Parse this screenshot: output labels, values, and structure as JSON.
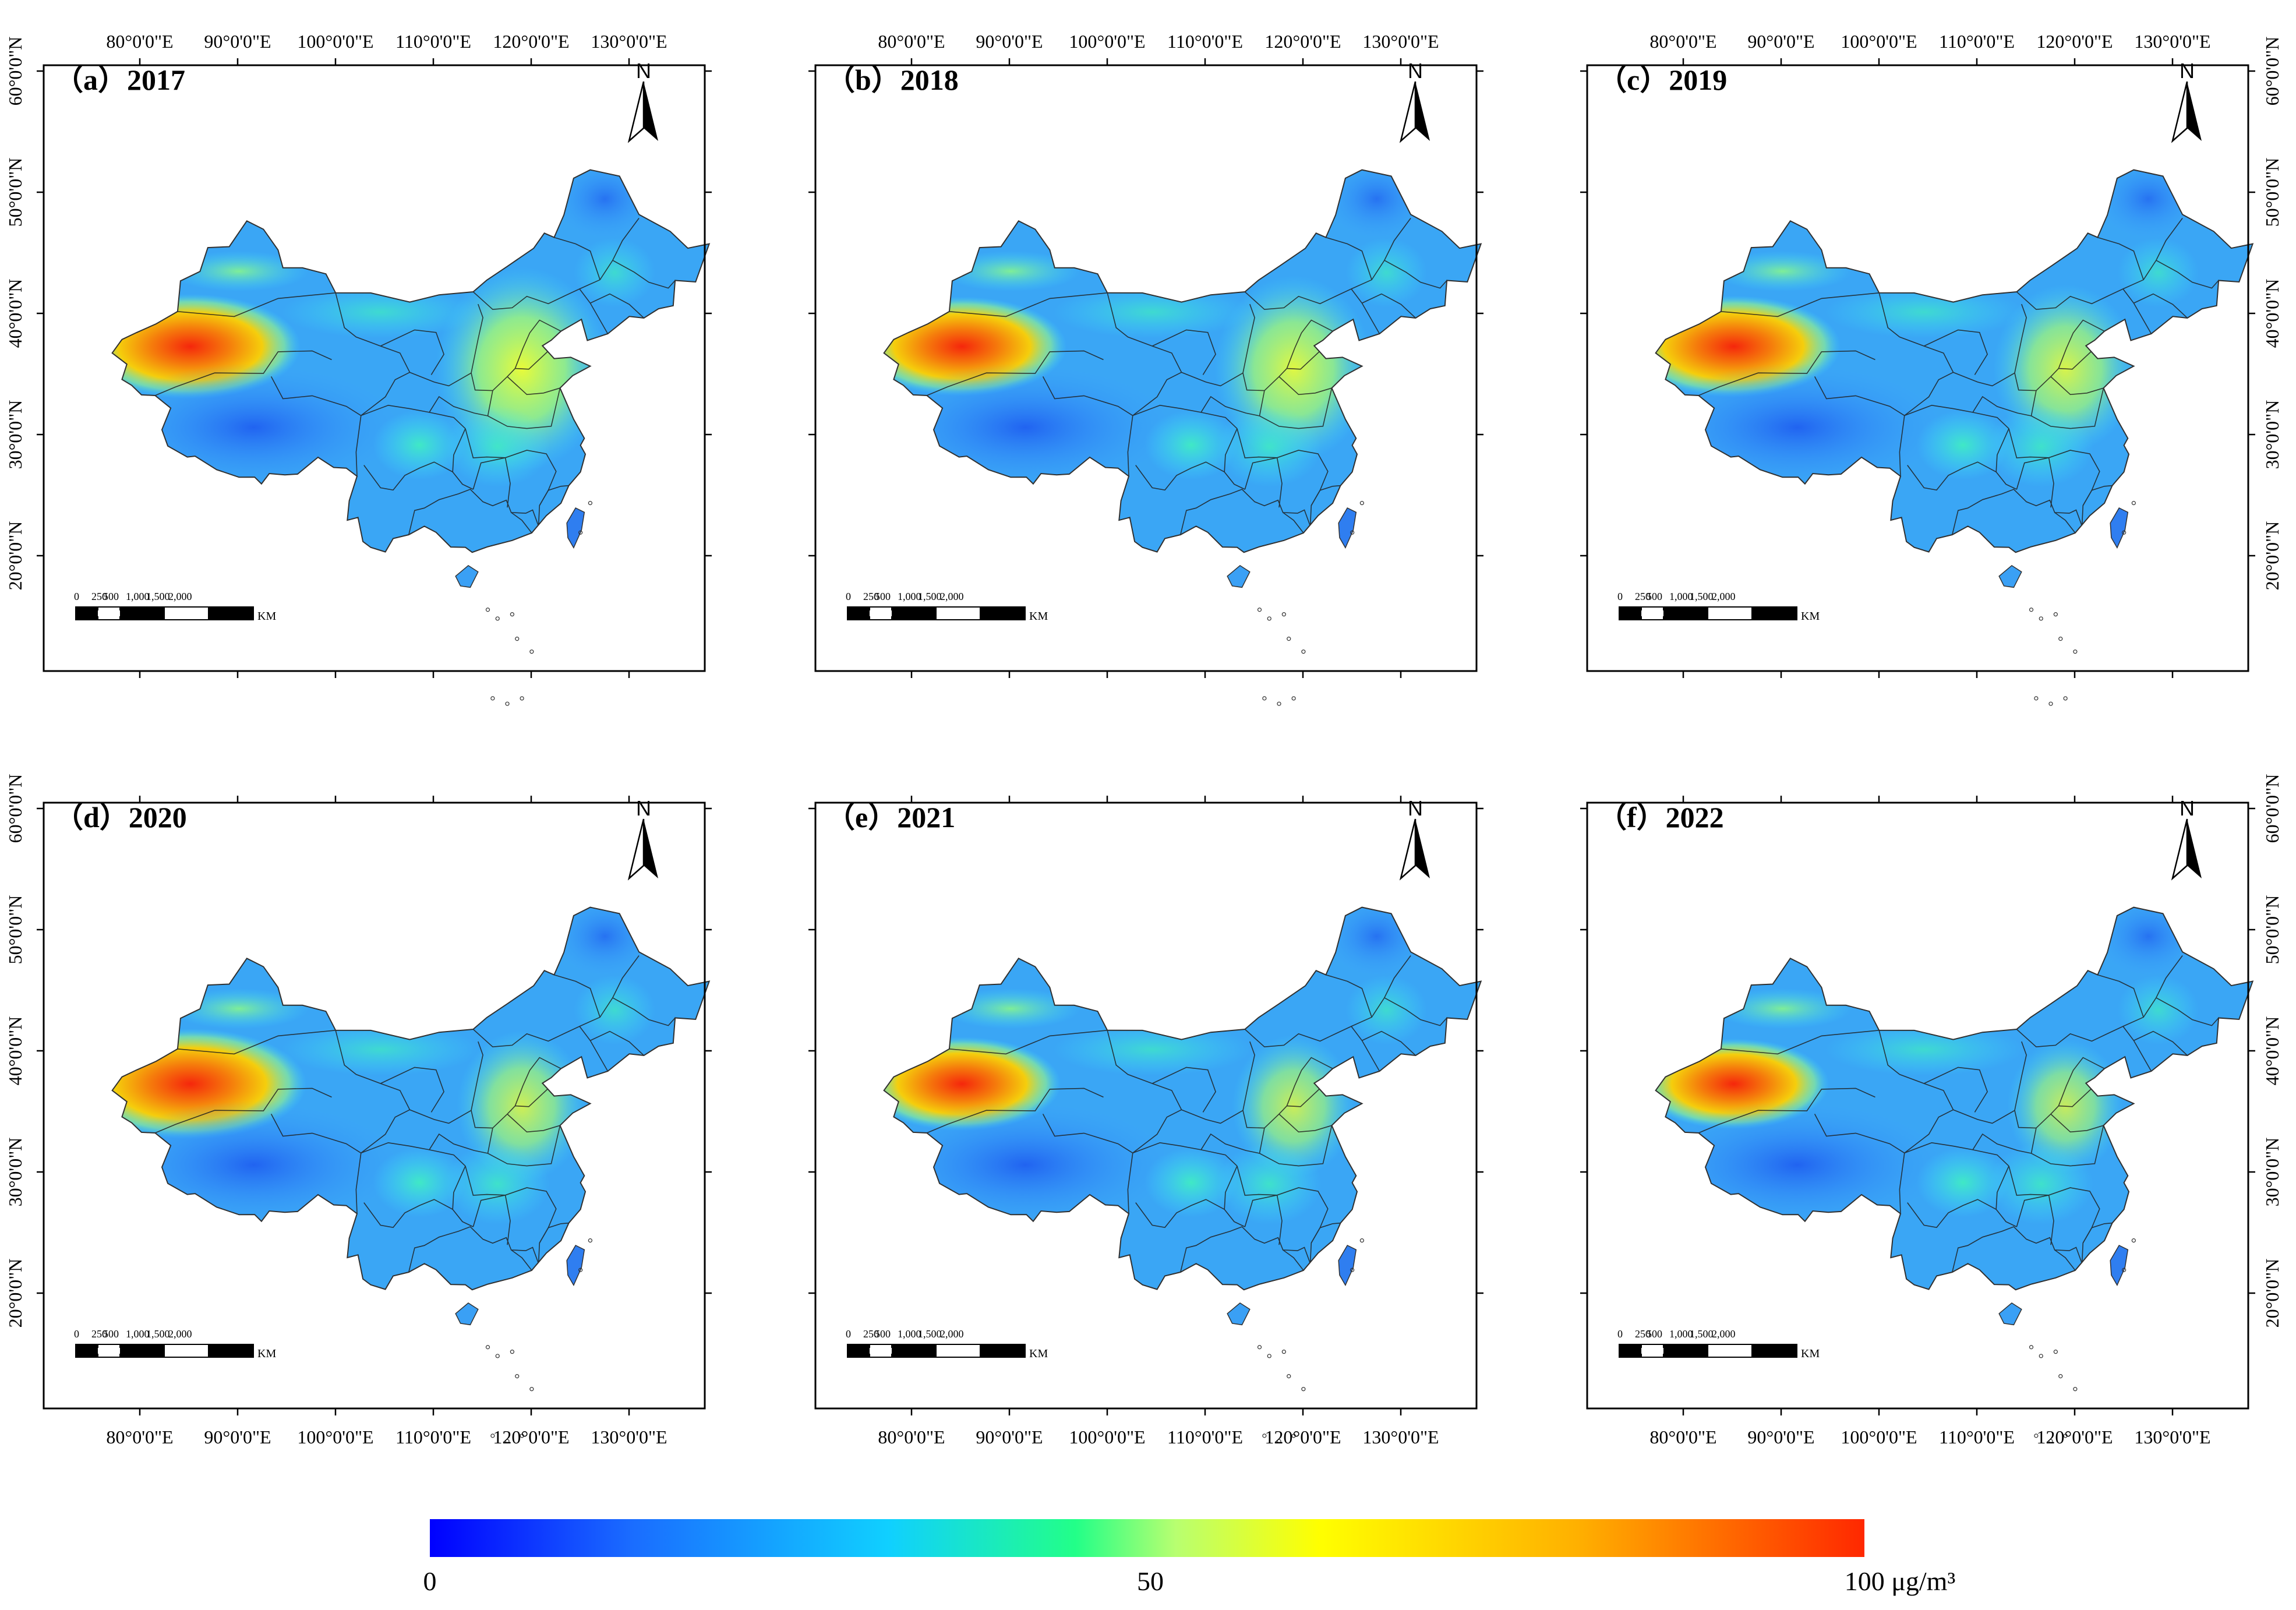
{
  "figure": {
    "type": "multi-panel choropleth map",
    "region": "China",
    "panels": [
      {
        "id": "a",
        "label": "（a）2017",
        "year": "2017"
      },
      {
        "id": "b",
        "label": "（b）2018",
        "year": "2018"
      },
      {
        "id": "c",
        "label": "（c）2019",
        "year": "2019"
      },
      {
        "id": "d",
        "label": "（d）2020",
        "year": "2020"
      },
      {
        "id": "e",
        "label": "（e）2021",
        "year": "2021"
      },
      {
        "id": "f",
        "label": "（f）2022",
        "year": "2022"
      }
    ],
    "lon_labels": [
      "80°0'0\"E",
      "90°0'0\"E",
      "100°0'0\"E",
      "110°0'0\"E",
      "120°0'0\"E",
      "130°0'0\"E"
    ],
    "lat_labels": [
      "60°0'0\"N",
      "50°0'0\"N",
      "40°0'0\"N",
      "30°0'0\"N",
      "20°0'0\"N"
    ],
    "north_arrow": "N",
    "scale_bar": {
      "ticks": [
        "0",
        "250",
        "500",
        "1,000",
        "1,500",
        "2,000"
      ],
      "unit": "KM"
    },
    "colorbar": {
      "min_label": "0",
      "mid_label": "50",
      "max_label": "100 μg/m³",
      "colors": [
        "#0000ff",
        "#1a6cff",
        "#10d0ff",
        "#22ff88",
        "#b8ff70",
        "#ffff00",
        "#ffb000",
        "#ff3000"
      ]
    },
    "hotspot_intensity": {
      "2017": 0.95,
      "2018": 0.9,
      "2019": 0.92,
      "2020": 1.0,
      "2021": 0.85,
      "2022": 0.82
    },
    "east_intensity": {
      "2017": 0.9,
      "2018": 0.8,
      "2019": 0.7,
      "2020": 0.6,
      "2021": 0.55,
      "2022": 0.5
    }
  }
}
